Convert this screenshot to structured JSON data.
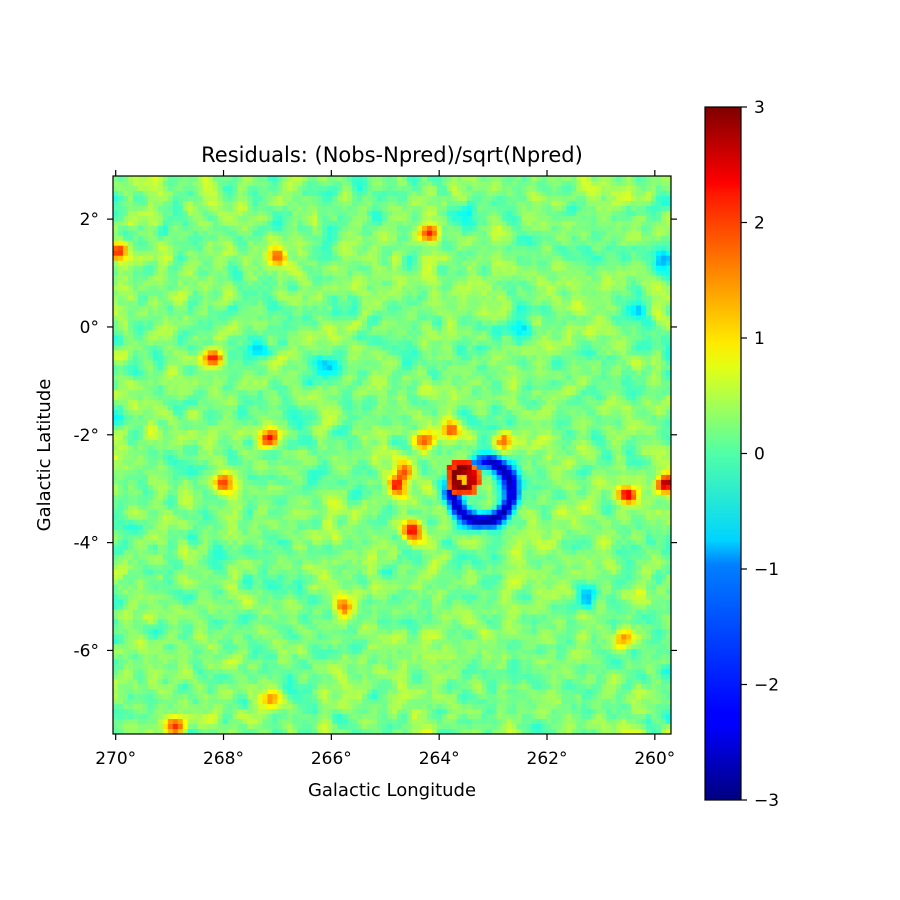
{
  "chart_data": {
    "type": "heatmap",
    "title": "Residuals: (Nobs-Npred)/sqrt(Npred)",
    "xlabel": "Galactic Longitude",
    "ylabel": "Galactic Latitude",
    "xlim": [
      270.05,
      259.7
    ],
    "ylim": [
      -7.55,
      2.8
    ],
    "x_ticks": [
      {
        "value": 270,
        "label": "270°"
      },
      {
        "value": 268,
        "label": "268°"
      },
      {
        "value": 266,
        "label": "266°"
      },
      {
        "value": 264,
        "label": "264°"
      },
      {
        "value": 262,
        "label": "262°"
      },
      {
        "value": 260,
        "label": "260°"
      }
    ],
    "y_ticks": [
      {
        "value": 2,
        "label": "2°"
      },
      {
        "value": 0,
        "label": "0°"
      },
      {
        "value": -2,
        "label": "-2°"
      },
      {
        "value": -4,
        "label": "-4°"
      },
      {
        "value": -6,
        "label": "-6°"
      }
    ],
    "colorbar": {
      "colormap": "jet",
      "range": [
        -3,
        3
      ],
      "ticks": [
        {
          "value": 3,
          "label": "3"
        },
        {
          "value": 2,
          "label": "2"
        },
        {
          "value": 1,
          "label": "1"
        },
        {
          "value": 0,
          "label": "0"
        },
        {
          "value": -1,
          "label": "−1"
        },
        {
          "value": -2,
          "label": "−2"
        },
        {
          "value": -3,
          "label": "−3"
        }
      ]
    },
    "grid": false,
    "features": {
      "background_level": 0.0,
      "positive_core": {
        "l": 263.55,
        "b": -2.8,
        "peak": 3.0,
        "inner_value": 1.3
      },
      "negative_ring": {
        "l": 263.2,
        "b": -3.05,
        "value": -2.6,
        "opening": "upper-left"
      },
      "hotspots": [
        {
          "l": 264.65,
          "b": -2.65,
          "value": 2.0
        },
        {
          "l": 264.8,
          "b": -2.95,
          "value": 2.2
        },
        {
          "l": 264.3,
          "b": -2.1,
          "value": 2.0
        },
        {
          "l": 263.8,
          "b": -1.9,
          "value": 1.8
        },
        {
          "l": 262.8,
          "b": -2.1,
          "value": 1.6
        },
        {
          "l": 264.5,
          "b": -3.8,
          "value": 2.0
        },
        {
          "l": 264.2,
          "b": 1.75,
          "value": 2.0
        },
        {
          "l": 267.15,
          "b": -2.05,
          "value": 2.0
        },
        {
          "l": 260.5,
          "b": -3.1,
          "value": 2.3
        },
        {
          "l": 259.8,
          "b": -2.9,
          "value": 2.6
        },
        {
          "l": 268.2,
          "b": -0.6,
          "value": 1.8
        },
        {
          "l": 269.95,
          "b": 1.4,
          "value": 1.8
        },
        {
          "l": 267.0,
          "b": 1.3,
          "value": 1.6
        },
        {
          "l": 268.9,
          "b": -7.4,
          "value": 2.0
        },
        {
          "l": 267.1,
          "b": -6.9,
          "value": 1.6
        },
        {
          "l": 260.6,
          "b": -5.8,
          "value": 1.7
        },
        {
          "l": 268.0,
          "b": -2.9,
          "value": 1.8
        },
        {
          "l": 265.8,
          "b": -5.2,
          "value": 1.6
        }
      ],
      "coldspots": [
        {
          "l": 263.6,
          "b": 2.0,
          "value": -1.0
        },
        {
          "l": 262.5,
          "b": 0.0,
          "value": -1.0
        },
        {
          "l": 266.1,
          "b": -0.7,
          "value": -1.0
        },
        {
          "l": 260.4,
          "b": 0.3,
          "value": -0.9
        },
        {
          "l": 259.9,
          "b": 1.3,
          "value": -0.9
        },
        {
          "l": 270.0,
          "b": -1.7,
          "value": -0.8
        },
        {
          "l": 267.3,
          "b": -0.4,
          "value": -0.8
        },
        {
          "l": 261.3,
          "b": -5.0,
          "value": -0.8
        }
      ]
    }
  }
}
